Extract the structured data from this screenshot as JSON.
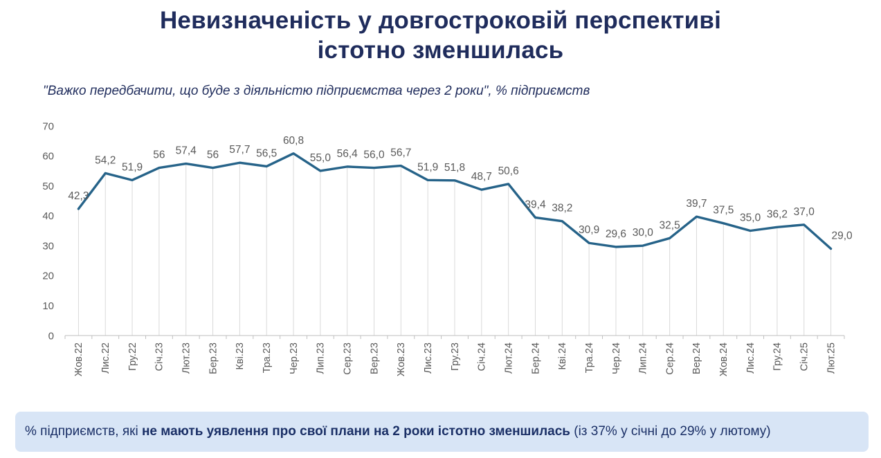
{
  "page": {
    "title_line1": "Невизначеність у довгостроковій перспективі",
    "title_line2": "істотно зменшилась",
    "subtitle": "\"Важко передбачити, що буде з діяльністю підприємства через 2 роки\", % підприємств"
  },
  "note": {
    "prefix": "% підприємств, які ",
    "bold": "не мають уявлення про свої плани на 2 роки істотно зменшилась",
    "suffix": " (із 37% у січні до 29% у лютому)"
  },
  "colors": {
    "title_navy": "#1f2c5c",
    "note_bg": "#d8e5f6",
    "note_text": "#1a2f66",
    "line": "#266389",
    "data_label": "#595959",
    "axis": "#bfbfbf",
    "dropline": "#d9d9d9"
  },
  "chart_data": {
    "type": "line",
    "title": "Невизначеність у довгостроковій перспективі істотно зменшилась",
    "subtitle": "\"Важко передбачити, що буде з діяльністю підприємства через 2 роки\", % підприємств",
    "categories": [
      "Жов.22",
      "Лис.22",
      "Гру.22",
      "Січ.23",
      "Лют.23",
      "Бер.23",
      "Кві.23",
      "Тра.23",
      "Чер.23",
      "Лип.23",
      "Сер.23",
      "Вер.23",
      "Жов.23",
      "Лис.23",
      "Гру.23",
      "Січ.24",
      "Лют.24",
      "Бер.24",
      "Кві.24",
      "Тра.24",
      "Чер.24",
      "Лип.24",
      "Сер.24",
      "Вер.24",
      "Жов.24",
      "Лис.24",
      "Гру.24",
      "Січ.25",
      "Лют.25"
    ],
    "values": [
      42.3,
      54.2,
      51.9,
      56,
      57.4,
      56,
      57.7,
      56.5,
      60.8,
      55.0,
      56.4,
      56.0,
      56.7,
      51.9,
      51.8,
      48.7,
      50.6,
      39.4,
      38.2,
      30.9,
      29.6,
      30.0,
      32.5,
      39.7,
      37.5,
      35.0,
      36.2,
      37.0,
      29.0
    ],
    "labels": [
      "42,3",
      "54,2",
      "51,9",
      "56",
      "57,4",
      "56",
      "57,7",
      "56,5",
      "60,8",
      "55,0",
      "56,4",
      "56,0",
      "56,7",
      "51,9",
      "51,8",
      "48,7",
      "50,6",
      "39,4",
      "38,2",
      "30,9",
      "29,6",
      "30,0",
      "32,5",
      "39,7",
      "37,5",
      "35,0",
      "36,2",
      "37,0",
      "29,0"
    ],
    "xlabel": "",
    "ylabel": "",
    "ylim": [
      0,
      70
    ],
    "yticks": [
      0,
      10,
      20,
      30,
      40,
      50,
      60,
      70
    ],
    "grid": "vertical-droplines",
    "legend": "none"
  }
}
